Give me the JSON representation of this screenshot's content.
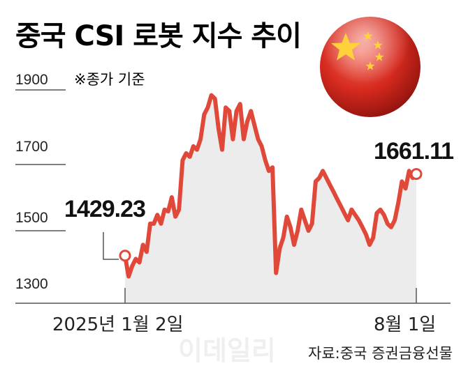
{
  "chart_data": {
    "type": "line",
    "title": "중국 CSI 로봇 지수 추이",
    "note": "※종가 기준",
    "source": "자료:중국 증권금융선물",
    "watermark": "이데일리",
    "colors": {
      "line": "#e0493a",
      "area": "#ececec",
      "axis": "#555555"
    },
    "ylim": [
      1250,
      1950
    ],
    "y_ticks": [
      "1900",
      "1700",
      "1500",
      "1300"
    ],
    "x_tick_labels": [
      "2025년 1월 2일",
      "8월 1일"
    ],
    "start": {
      "date": "2025년 1월 2일",
      "value": 1429.23,
      "label": "1429.23"
    },
    "end": {
      "date": "8월 1일",
      "value": 1661.11,
      "label": "1661.11"
    },
    "y": [
      1429.23,
      1370,
      1400,
      1420,
      1410,
      1460,
      1440,
      1520,
      1520,
      1545,
      1520,
      1560,
      1555,
      1595,
      1540,
      1560,
      1700,
      1720,
      1710,
      1740,
      1730,
      1760,
      1830,
      1850,
      1885,
      1875,
      1790,
      1730,
      1850,
      1840,
      1760,
      1840,
      1860,
      1760,
      1810,
      1840,
      1800,
      1760,
      1740,
      1700,
      1670,
      1680,
      1380,
      1450,
      1480,
      1540,
      1510,
      1460,
      1500,
      1560,
      1530,
      1500,
      1520,
      1640,
      1650,
      1670,
      1650,
      1630,
      1610,
      1590,
      1570,
      1550,
      1530,
      1560,
      1545,
      1530,
      1510,
      1490,
      1460,
      1480,
      1550,
      1560,
      1545,
      1520,
      1510,
      1530,
      1580,
      1640,
      1620,
      1670,
      1650,
      1661.11
    ]
  }
}
